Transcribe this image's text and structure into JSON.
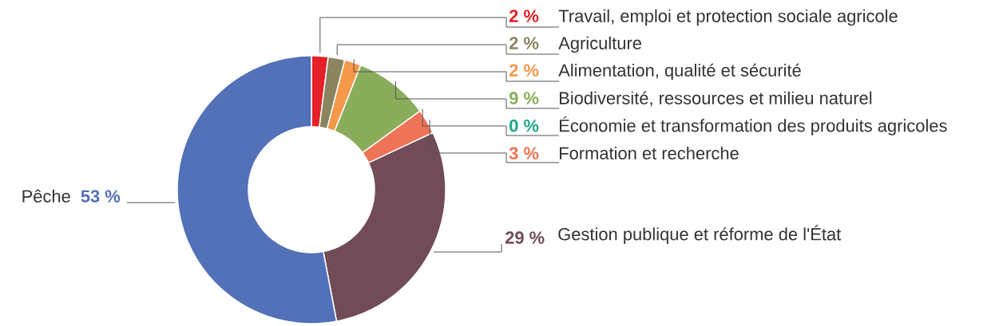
{
  "chart_data": {
    "type": "donut",
    "categories": [
      "Travail, emploi et protection sociale agricole",
      "Agriculture",
      "Alimentation, qualité et sécurité",
      "Biodiversité, ressources et milieu naturel",
      "Économie et transformation des produits agricoles",
      "Formation et recherche",
      "Gestion publique et réforme de l'État",
      "Pêche"
    ],
    "values": [
      2,
      2,
      2,
      9,
      0,
      3,
      29,
      53
    ],
    "colors": [
      "#e52026",
      "#8a845f",
      "#f5984a",
      "#8aad5b",
      "#1aa88a",
      "#ef7356",
      "#724b58",
      "#5271b8"
    ],
    "value_labels": [
      "2 %",
      "2 %",
      "2 %",
      "9 %",
      "0 %",
      "3 %",
      "29 %",
      "53 %"
    ]
  }
}
